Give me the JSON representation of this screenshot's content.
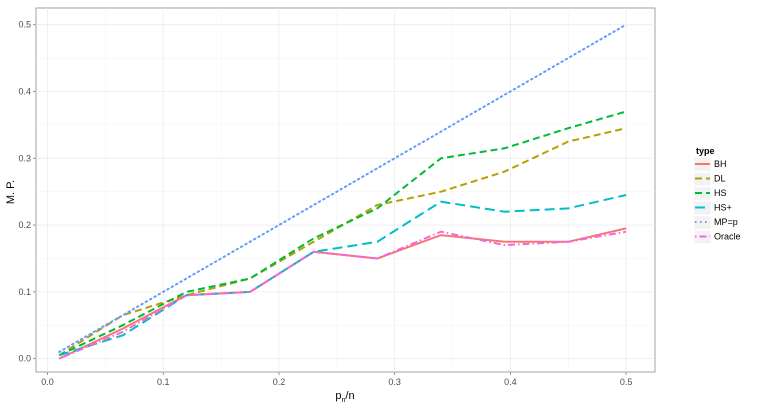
{
  "chart_data": {
    "type": "line",
    "title": "",
    "ylabel": "M. P.",
    "xlabel_main": "p",
    "xlabel_sub": "n",
    "xlabel_tail": "/n",
    "xlim": [
      -0.01,
      0.525
    ],
    "ylim": [
      -0.02,
      0.525
    ],
    "x_ticks": [
      0.0,
      0.1,
      0.2,
      0.3,
      0.4,
      0.5
    ],
    "x_tick_labels": [
      "0.0",
      "0.1",
      "0.2",
      "0.3",
      "0.4",
      "0.5"
    ],
    "y_ticks": [
      0.0,
      0.1,
      0.2,
      0.3,
      0.4,
      0.5
    ],
    "y_tick_labels": [
      "0.0",
      "0.1",
      "0.2",
      "0.3",
      "0.4",
      "0.5"
    ],
    "grid": true,
    "legend_position": "right",
    "legend_title": "type",
    "x": [
      0.01,
      0.065,
      0.12,
      0.175,
      0.23,
      0.285,
      0.34,
      0.395,
      0.45,
      0.5
    ],
    "series": [
      {
        "name": "BH",
        "color": "#F8766D",
        "dash": "solid",
        "values": [
          0.0,
          0.045,
          0.095,
          0.1,
          0.16,
          0.15,
          0.185,
          0.175,
          0.175,
          0.195
        ]
      },
      {
        "name": "DL",
        "color": "#B79F00",
        "dash": "dashed",
        "values": [
          0.005,
          0.065,
          0.095,
          0.12,
          0.175,
          0.23,
          0.25,
          0.28,
          0.325,
          0.345
        ]
      },
      {
        "name": "HS",
        "color": "#00BA38",
        "dash": "dashed",
        "values": [
          0.005,
          0.05,
          0.1,
          0.12,
          0.18,
          0.225,
          0.3,
          0.315,
          0.345,
          0.37
        ]
      },
      {
        "name": "HS+",
        "color": "#00BFC4",
        "dash": "longdash",
        "values": [
          0.005,
          0.035,
          0.095,
          0.1,
          0.16,
          0.175,
          0.235,
          0.22,
          0.225,
          0.245
        ]
      },
      {
        "name": "MP=p",
        "color": "#619CFF",
        "dash": "dotted",
        "values": [
          0.01,
          0.065,
          0.12,
          0.175,
          0.23,
          0.285,
          0.34,
          0.395,
          0.45,
          0.5
        ]
      },
      {
        "name": "Oracle",
        "color": "#F564E3",
        "dash": "dotdash",
        "values": [
          0.0,
          0.04,
          0.095,
          0.1,
          0.16,
          0.15,
          0.19,
          0.17,
          0.175,
          0.19
        ]
      }
    ]
  }
}
